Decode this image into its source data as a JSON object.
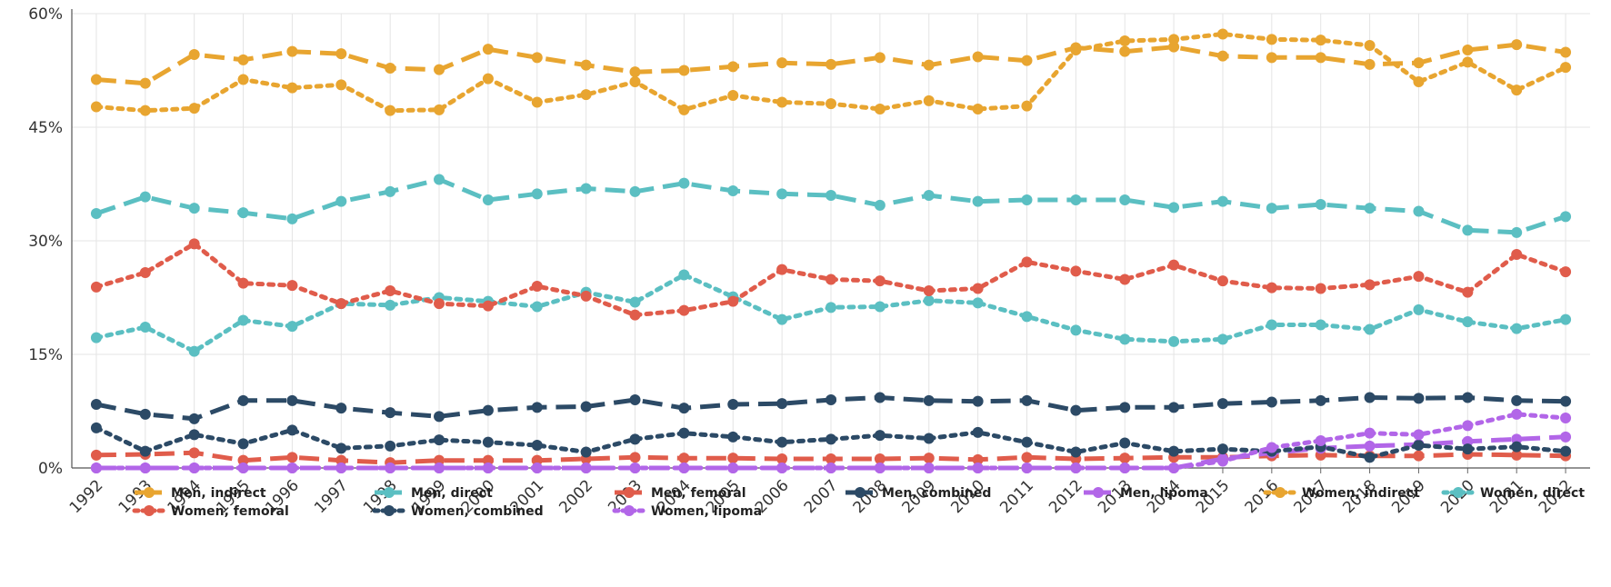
{
  "chart_data": {
    "type": "line",
    "x": [
      "1992",
      "1993",
      "1994",
      "1995",
      "1996",
      "1997",
      "1998",
      "1999",
      "2000",
      "2001",
      "2002",
      "2003",
      "2004",
      "2005",
      "2006",
      "2007",
      "2008",
      "2009",
      "2010",
      "2011",
      "2012",
      "2013",
      "2014",
      "2015",
      "2016",
      "2017",
      "2018",
      "2019",
      "2020",
      "2021",
      "2022"
    ],
    "ylim": [
      0,
      60
    ],
    "yticks": [
      0,
      15,
      30,
      45,
      60
    ],
    "ytick_labels": [
      "0%",
      "15%",
      "30%",
      "45%",
      "60%"
    ],
    "grid": true,
    "legend_position": "bottom",
    "series": [
      {
        "name": "Men, indirect",
        "color": "#E8A530",
        "style": "dashed",
        "values": [
          51.3,
          50.8,
          54.6,
          53.9,
          55.0,
          54.7,
          52.8,
          52.6,
          55.3,
          54.2,
          53.2,
          52.3,
          52.5,
          53.0,
          53.5,
          53.3,
          54.2,
          53.2,
          54.3,
          53.8,
          55.5,
          55.0,
          55.6,
          54.4,
          54.2,
          54.2,
          53.3,
          53.5,
          55.2,
          55.9,
          54.9
        ]
      },
      {
        "name": "Men, direct",
        "color": "#5BBFC2",
        "style": "dashed",
        "values": [
          33.6,
          35.8,
          34.3,
          33.7,
          32.9,
          35.2,
          36.5,
          38.1,
          35.4,
          36.2,
          36.9,
          36.5,
          37.6,
          36.6,
          36.2,
          36.0,
          34.7,
          36.0,
          35.2,
          35.4,
          35.4,
          35.4,
          34.4,
          35.2,
          34.3,
          34.8,
          34.3,
          33.9,
          31.4,
          31.1,
          33.2
        ]
      },
      {
        "name": "Men, femoral",
        "color": "#E05C4B",
        "style": "dashed",
        "values": [
          1.7,
          1.8,
          2.0,
          1.0,
          1.4,
          1.0,
          0.7,
          1.0,
          1.0,
          1.0,
          1.2,
          1.4,
          1.3,
          1.3,
          1.2,
          1.2,
          1.2,
          1.3,
          1.1,
          1.4,
          1.2,
          1.3,
          1.4,
          1.4,
          1.6,
          1.7,
          1.6,
          1.6,
          1.8,
          1.7,
          1.6
        ]
      },
      {
        "name": "Men, combined",
        "color": "#2C4A66",
        "style": "dashed",
        "values": [
          8.4,
          7.1,
          6.5,
          8.9,
          8.9,
          7.9,
          7.3,
          6.8,
          7.6,
          8.0,
          8.1,
          9.0,
          7.9,
          8.4,
          8.5,
          9.0,
          9.3,
          8.9,
          8.8,
          8.9,
          7.6,
          8.0,
          8.0,
          8.5,
          8.7,
          8.9,
          9.3,
          9.2,
          9.3,
          8.9,
          8.8
        ]
      },
      {
        "name": "Men, lipoma",
        "color": "#B266E8",
        "style": "dashed",
        "values": [
          0,
          0,
          0,
          0,
          0,
          0,
          0,
          0,
          0,
          0,
          0,
          0,
          0,
          0,
          0,
          0,
          0,
          0,
          0,
          0,
          0,
          0,
          0,
          1.2,
          2.0,
          2.6,
          2.9,
          3.1,
          3.5,
          3.8,
          4.1
        ]
      },
      {
        "name": "Women, indirect",
        "color": "#E8A530",
        "style": "dotted",
        "values": [
          47.7,
          47.2,
          47.5,
          51.3,
          50.2,
          50.6,
          47.2,
          47.3,
          51.4,
          48.3,
          49.3,
          51.0,
          47.3,
          49.2,
          48.3,
          48.1,
          47.4,
          48.5,
          47.4,
          47.8,
          55.2,
          56.4,
          56.6,
          57.3,
          56.6,
          56.5,
          55.8,
          51.0,
          53.6,
          49.9,
          52.9
        ]
      },
      {
        "name": "Women, direct",
        "color": "#5BBFC2",
        "style": "dotted",
        "values": [
          17.2,
          18.6,
          15.4,
          19.5,
          18.7,
          21.7,
          21.5,
          22.5,
          22.0,
          21.3,
          23.2,
          21.9,
          25.5,
          22.6,
          19.6,
          21.2,
          21.3,
          22.1,
          21.8,
          20.0,
          18.2,
          17.0,
          16.7,
          17.0,
          18.9,
          18.9,
          18.3,
          20.9,
          19.3,
          18.4,
          19.6
        ]
      },
      {
        "name": "Women, femoral",
        "color": "#E05C4B",
        "style": "dotted",
        "values": [
          23.9,
          25.8,
          29.6,
          24.4,
          24.1,
          21.7,
          23.4,
          21.7,
          21.4,
          24.0,
          22.7,
          20.2,
          20.8,
          22.0,
          26.2,
          24.9,
          24.7,
          23.4,
          23.7,
          27.2,
          26.0,
          24.9,
          26.8,
          24.7,
          23.8,
          23.7,
          24.2,
          25.3,
          23.2,
          28.2,
          25.9
        ]
      },
      {
        "name": "Women, combined",
        "color": "#2C4A66",
        "style": "dotted",
        "values": [
          5.3,
          2.2,
          4.4,
          3.2,
          5.0,
          2.6,
          2.9,
          3.7,
          3.4,
          3.0,
          2.1,
          3.8,
          4.6,
          4.1,
          3.4,
          3.8,
          4.3,
          3.9,
          4.7,
          3.4,
          2.1,
          3.3,
          2.2,
          2.5,
          2.2,
          2.8,
          1.4,
          3.0,
          2.5,
          2.8,
          2.2
        ]
      },
      {
        "name": "Women, lipoma",
        "color": "#B266E8",
        "style": "dotted",
        "values": [
          0,
          0,
          0,
          0,
          0,
          0,
          0,
          0,
          0,
          0,
          0,
          0,
          0,
          0,
          0,
          0,
          0,
          0,
          0,
          0,
          0,
          0,
          0,
          0.9,
          2.7,
          3.6,
          4.6,
          4.4,
          5.6,
          7.1,
          6.6
        ]
      }
    ]
  }
}
